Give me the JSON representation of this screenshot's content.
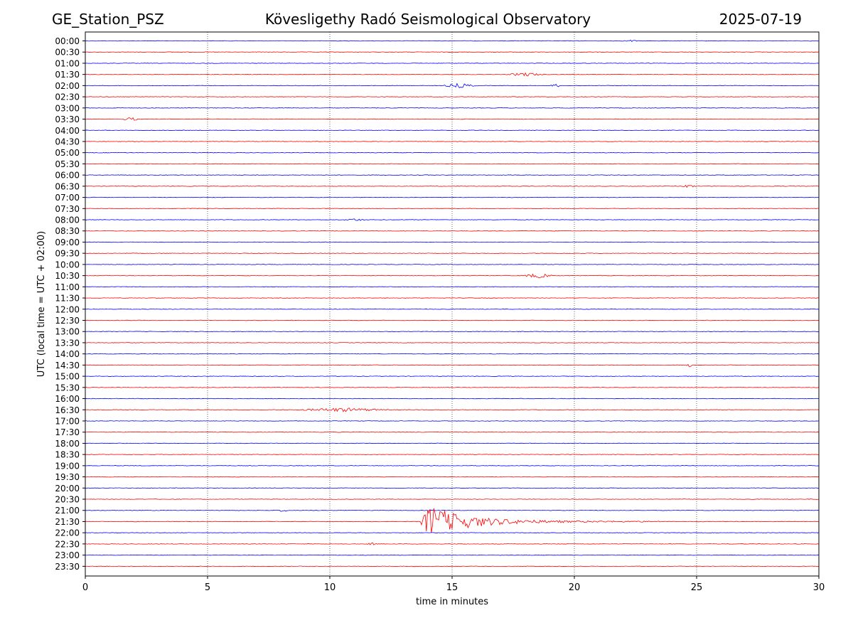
{
  "header": {
    "station": "GE_Station_PSZ",
    "observatory": "Kövesligethy Radó Seismological Observatory",
    "date": "2025-07-19"
  },
  "chart_data": {
    "type": "line",
    "xlabel": "time in minutes",
    "ylabel": "UTC (local time = UTC + 02:00)",
    "xlim": [
      0,
      30
    ],
    "xticks": [
      0,
      5,
      10,
      15,
      20,
      25,
      30
    ],
    "grid": "vertical dotted lines at each 5 minutes",
    "trace_colors": [
      "#0000ff",
      "#ff0000"
    ],
    "rows": [
      "00:00",
      "00:30",
      "01:00",
      "01:30",
      "02:00",
      "02:30",
      "03:00",
      "03:30",
      "04:00",
      "04:30",
      "05:00",
      "05:30",
      "06:00",
      "06:30",
      "07:00",
      "07:30",
      "08:00",
      "08:30",
      "09:00",
      "09:30",
      "10:00",
      "10:30",
      "11:00",
      "11:30",
      "12:00",
      "12:30",
      "13:00",
      "13:30",
      "14:00",
      "14:30",
      "15:00",
      "15:30",
      "16:00",
      "16:30",
      "17:00",
      "17:30",
      "18:00",
      "18:30",
      "19:00",
      "19:30",
      "20:00",
      "20:30",
      "21:00",
      "21:30",
      "22:00",
      "22:30",
      "23:00",
      "23:30"
    ],
    "events": [
      {
        "row": "00:00",
        "start": 22.0,
        "end": 22.6,
        "amplitude": 0.12
      },
      {
        "row": "01:30",
        "start": 17.2,
        "end": 18.8,
        "amplitude": 0.25
      },
      {
        "row": "02:00",
        "start": 14.6,
        "end": 16.0,
        "amplitude": 0.3
      },
      {
        "row": "02:00",
        "start": 19.0,
        "end": 19.5,
        "amplitude": 0.2
      },
      {
        "row": "03:30",
        "start": 1.5,
        "end": 2.2,
        "amplitude": 0.25
      },
      {
        "row": "06:30",
        "start": 24.4,
        "end": 25.0,
        "amplitude": 0.2
      },
      {
        "row": "08:00",
        "start": 10.5,
        "end": 11.5,
        "amplitude": 0.15
      },
      {
        "row": "10:30",
        "start": 17.8,
        "end": 19.2,
        "amplitude": 0.3
      },
      {
        "row": "14:30",
        "start": 24.5,
        "end": 24.9,
        "amplitude": 0.25
      },
      {
        "row": "16:30",
        "start": 8.5,
        "end": 12.5,
        "amplitude": 0.25
      },
      {
        "row": "21:00",
        "start": 7.8,
        "end": 8.4,
        "amplitude": 0.15
      },
      {
        "row": "21:30",
        "start": 13.7,
        "end": 23.5,
        "amplitude": 1.6,
        "type": "earthquake"
      },
      {
        "row": "22:30",
        "start": 11.5,
        "end": 12.0,
        "amplitude": 0.15
      }
    ]
  }
}
